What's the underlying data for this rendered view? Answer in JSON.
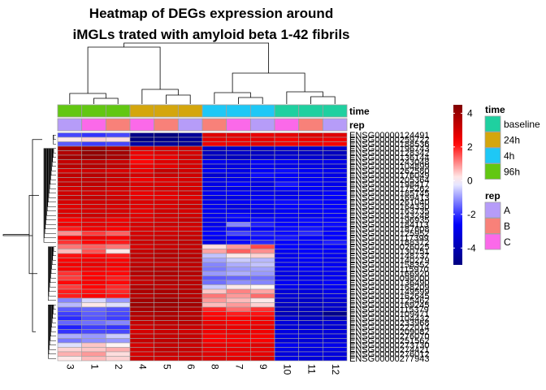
{
  "chart_data": {
    "type": "heatmap",
    "title_lines": [
      "Heatmap of DEGs expression around",
      "iMGLs trated with amyloid beta 1-42 fibrils"
    ],
    "columns": [
      "3",
      "1",
      "2",
      "4",
      "5",
      "6",
      "8",
      "7",
      "9",
      "10",
      "11",
      "12"
    ],
    "column_annotations": {
      "time": [
        "96h",
        "96h",
        "96h",
        "24h",
        "24h",
        "24h",
        "4h",
        "4h",
        "4h",
        "baseline",
        "baseline",
        "baseline"
      ],
      "rep": [
        "A",
        "C",
        "B",
        "C",
        "B",
        "A",
        "B",
        "C",
        "A",
        "C",
        "B",
        "A"
      ]
    },
    "annotation_labels": [
      "time",
      "rep"
    ],
    "row_labels": [
      "ENSG00000124491",
      "ENSG00000259722",
      "ENSG00000188536",
      "ENSG00000196743",
      "ENSG00000128342",
      "ENSG00000136144",
      "ENSG00000243048",
      "ENSG00000104899",
      "ENSG00000262580",
      "ENSG00000176049",
      "ENSG00000205364",
      "ENSG00000198417",
      "ENSG00000175262",
      "ENSG00000185745",
      "ENSG00000169413",
      "ENSG00000261040",
      "ENSG00000164330",
      "ENSG00000163735",
      "ENSG00000143248",
      "ENSG00000196935",
      "ENSG00000184113",
      "ENSG00000187608",
      "ENSG00000125952",
      "ENSG00000117399",
      "ENSG00000188372",
      "ENSG00000026025",
      "ENSG00000130751",
      "ENSG00000148737",
      "ENSG00000140279",
      "ENSG00000158352",
      "ENSG00000115970",
      "ENSG00000166920",
      "ENSG00000098000",
      "ENSG00000136490",
      "ENSG00000168209",
      "ENSG00000149599",
      "ENSG00000162645",
      "ENSG00000125462",
      "ENSG00000169245",
      "ENSG00000115379",
      "ENSG00000109471",
      "ENSG00000104432",
      "ENSG00000233968",
      "ENSG00000222014",
      "ENSG00000209082",
      "ENSG00000276070",
      "ENSG00000251562",
      "ENSG00000273730",
      "ENSG00000274421",
      "ENSG00000276012",
      "ENSG00000277943"
    ],
    "values": [
      [
        -1.8,
        -2.0,
        -1.8,
        -4.8,
        -5.0,
        -4.5,
        2.8,
        2.8,
        2.6,
        2.7,
        2.9,
        2.8
      ],
      [
        0.2,
        0.4,
        0.3,
        -5.0,
        -4.9,
        -4.6,
        2.7,
        2.6,
        2.7,
        2.4,
        2.6,
        2.5
      ],
      [
        -1.6,
        -1.9,
        -1.8,
        -4.3,
        -4.5,
        -4.6,
        2.5,
        2.6,
        2.7,
        2.5,
        2.5,
        2.4
      ],
      [
        3.8,
        4.0,
        3.7,
        2.9,
        3.0,
        3.1,
        -3.6,
        -3.6,
        -3.5,
        -3.4,
        -3.5,
        -3.5
      ],
      [
        3.6,
        4.2,
        3.9,
        2.6,
        2.9,
        3.0,
        -3.8,
        -3.6,
        -3.7,
        -3.6,
        -3.7,
        -3.8
      ],
      [
        3.9,
        4.1,
        3.8,
        2.5,
        2.6,
        3.1,
        -3.7,
        -3.8,
        -3.5,
        -3.3,
        -3.4,
        -3.6
      ],
      [
        3.3,
        3.4,
        3.2,
        2.2,
        2.8,
        3.0,
        -2.8,
        -3.0,
        -2.6,
        -2.7,
        -3.0,
        -2.9
      ],
      [
        3.5,
        3.6,
        3.4,
        2.6,
        2.7,
        3.0,
        -3.2,
        -3.1,
        -2.8,
        -3.0,
        -3.0,
        -3.2
      ],
      [
        3.0,
        3.1,
        2.9,
        2.6,
        3.3,
        3.1,
        -2.7,
        -3.0,
        -2.6,
        -2.4,
        -2.7,
        -2.8
      ],
      [
        3.4,
        3.5,
        3.3,
        3.0,
        3.2,
        3.1,
        -3.4,
        -3.0,
        -2.4,
        -2.6,
        -2.8,
        -3.0
      ],
      [
        3.2,
        3.3,
        3.1,
        2.5,
        2.8,
        3.0,
        -2.9,
        -3.0,
        -2.8,
        -2.6,
        -2.7,
        -2.8
      ],
      [
        3.3,
        3.4,
        3.2,
        2.9,
        2.9,
        3.0,
        -3.0,
        -2.5,
        -3.0,
        -2.3,
        -2.7,
        -2.9
      ],
      [
        3.0,
        3.2,
        3.0,
        2.8,
        3.0,
        3.0,
        -3.0,
        -3.0,
        -2.9,
        -2.5,
        -2.6,
        -2.8
      ],
      [
        3.1,
        3.1,
        3.0,
        2.6,
        2.8,
        3.1,
        -2.8,
        -2.7,
        -2.9,
        -3.0,
        -2.9,
        -2.6
      ],
      [
        3.2,
        3.3,
        3.1,
        2.7,
        2.7,
        2.8,
        -3.1,
        -3.0,
        -2.7,
        -2.8,
        -2.7,
        -2.6
      ],
      [
        3.0,
        3.1,
        3.1,
        2.9,
        3.0,
        3.1,
        -2.9,
        -2.7,
        -2.6,
        -2.4,
        -2.4,
        -2.6
      ],
      [
        2.8,
        3.0,
        2.9,
        2.8,
        2.9,
        3.2,
        -2.8,
        -3.1,
        -2.7,
        -2.5,
        -2.6,
        -2.5
      ],
      [
        2.9,
        3.0,
        3.0,
        2.7,
        3.1,
        3.0,
        -2.8,
        -2.9,
        -3.0,
        -2.7,
        -2.6,
        -2.6
      ],
      [
        2.9,
        3.2,
        3.0,
        2.8,
        3.1,
        3.1,
        -2.8,
        -2.4,
        -2.8,
        -2.7,
        -2.9,
        -2.6
      ],
      [
        2.3,
        2.7,
        2.5,
        2.8,
        3.0,
        3.3,
        -2.8,
        -2.6,
        -2.4,
        -2.6,
        -2.4,
        -2.5
      ],
      [
        2.6,
        2.8,
        2.7,
        3.0,
        3.2,
        3.1,
        -2.9,
        -1.2,
        -2.2,
        -2.5,
        -2.5,
        -2.4
      ],
      [
        2.0,
        2.5,
        2.3,
        2.9,
        2.9,
        3.0,
        -2.7,
        -2.3,
        -2.5,
        -2.4,
        -2.3,
        -2.6
      ],
      [
        1.0,
        1.7,
        1.4,
        3.0,
        3.1,
        3.2,
        -2.5,
        -1.8,
        -2.2,
        -2.4,
        -2.1,
        -2.5
      ],
      [
        2.3,
        2.6,
        2.4,
        3.1,
        3.2,
        3.3,
        -2.8,
        -2.5,
        -2.4,
        -2.3,
        -2.6,
        -2.5
      ],
      [
        1.8,
        2.2,
        2.0,
        3.2,
        3.3,
        3.4,
        -3.0,
        -2.4,
        -2.1,
        -2.5,
        -2.4,
        -2.2
      ],
      [
        1.2,
        1.4,
        1.2,
        3.0,
        3.2,
        3.3,
        0.3,
        0.9,
        1.6,
        -2.5,
        -2.7,
        -2.6
      ],
      [
        0.6,
        1.5,
        0.2,
        3.3,
        3.5,
        3.4,
        0.8,
        1.4,
        1.0,
        -2.8,
        -2.6,
        -2.7
      ],
      [
        2.1,
        2.2,
        2.0,
        3.4,
        3.6,
        3.5,
        -0.6,
        0.2,
        0.4,
        -2.9,
        -2.6,
        -2.8
      ],
      [
        2.3,
        2.5,
        2.3,
        3.3,
        3.5,
        3.5,
        -0.9,
        -0.5,
        -0.7,
        -2.8,
        -2.7,
        -2.9
      ],
      [
        2.5,
        2.7,
        2.5,
        3.4,
        3.3,
        3.4,
        -1.2,
        -0.8,
        -0.6,
        -2.9,
        -2.9,
        -2.8
      ],
      [
        2.4,
        2.5,
        2.3,
        3.5,
        3.6,
        3.4,
        -1.3,
        -1.0,
        -0.9,
        -2.8,
        -2.6,
        -2.7
      ],
      [
        1.8,
        2.3,
        2.2,
        3.6,
        3.7,
        3.6,
        -1.0,
        -0.8,
        -1.0,
        -3.1,
        -3.0,
        -2.9
      ],
      [
        1.7,
        2.3,
        2.0,
        3.3,
        3.5,
        3.4,
        -1.6,
        -1.5,
        -1.4,
        -3.0,
        -2.9,
        -2.8
      ],
      [
        2.2,
        2.4,
        2.2,
        3.3,
        3.6,
        3.5,
        -1.4,
        -1.1,
        -1.2,
        -2.7,
        -2.8,
        -2.6
      ],
      [
        1.7,
        2.2,
        1.9,
        3.6,
        3.4,
        3.5,
        -0.5,
        0.2,
        0.1,
        -2.9,
        -3.0,
        -2.8
      ],
      [
        2.0,
        2.1,
        1.9,
        3.7,
        3.8,
        3.6,
        0.5,
        1.1,
        0.8,
        -3.3,
        -3.2,
        -3.0
      ],
      [
        2.0,
        2.3,
        2.1,
        3.5,
        3.7,
        3.5,
        1.2,
        0.9,
        1.3,
        -3.3,
        -3.4,
        -3.1
      ],
      [
        -1.2,
        -0.4,
        -1.0,
        3.9,
        4.1,
        3.8,
        0.9,
        0.6,
        0.2,
        -3.5,
        -3.6,
        -3.4
      ],
      [
        -0.7,
        0.2,
        -0.3,
        4.0,
        4.0,
        3.9,
        0.6,
        0.9,
        0.4,
        -3.7,
        -3.6,
        -3.5
      ],
      [
        -1.6,
        -1.5,
        -1.7,
        3.8,
        3.9,
        3.6,
        1.9,
        1.3,
        1.8,
        -3.8,
        -3.7,
        -3.6
      ],
      [
        -1.9,
        -1.6,
        -1.8,
        3.6,
        3.7,
        3.5,
        2.2,
        2.0,
        2.1,
        -3.9,
        -4.0,
        -4.8
      ],
      [
        -2.1,
        -1.7,
        -1.9,
        3.5,
        3.7,
        3.6,
        2.4,
        2.3,
        2.5,
        -3.4,
        -3.7,
        -3.9
      ],
      [
        -1.5,
        -1.4,
        -1.2,
        3.3,
        3.4,
        3.5,
        2.6,
        2.4,
        2.5,
        -3.2,
        -3.5,
        -3.3
      ],
      [
        -2.2,
        -1.9,
        -2.0,
        3.1,
        3.3,
        3.2,
        2.8,
        2.6,
        2.7,
        -3.3,
        -3.2,
        -3.4
      ],
      [
        -2.0,
        -1.8,
        -1.8,
        3.0,
        3.2,
        3.1,
        2.5,
        2.7,
        2.5,
        -3.1,
        -3.3,
        -3.2
      ],
      [
        -0.8,
        -1.0,
        -0.5,
        3.2,
        3.3,
        3.3,
        2.4,
        2.5,
        2.4,
        -3.1,
        -3.1,
        -3.2
      ],
      [
        -1.3,
        -1.1,
        -1.0,
        3.3,
        3.4,
        3.4,
        2.3,
        2.4,
        2.3,
        -3.3,
        -3.3,
        -3.2
      ],
      [
        -0.3,
        0.5,
        0.1,
        3.0,
        3.3,
        3.2,
        2.7,
        2.6,
        2.8,
        -2.8,
        -3.0,
        -2.9
      ],
      [
        0.4,
        0.5,
        0.7,
        3.1,
        3.4,
        3.3,
        2.6,
        2.7,
        2.6,
        -3.0,
        -3.2,
        -3.0
      ],
      [
        0.7,
        0.9,
        0.3,
        3.0,
        3.2,
        3.1,
        2.8,
        2.6,
        2.7,
        -3.2,
        -3.1,
        -3.2
      ],
      [
        0.2,
        0.6,
        0.4,
        3.2,
        3.1,
        3.2,
        2.9,
        2.8,
        3.0,
        -3.1,
        -3.3,
        -3.2
      ]
    ],
    "color_scale": {
      "min": -5,
      "max": 4.5,
      "low_color": "#000080",
      "mid_color": "#ffffff",
      "high_color": "#800000",
      "ticks": [
        4,
        2,
        0,
        -2,
        -4
      ]
    },
    "legend": {
      "time": {
        "title": "time",
        "items": [
          {
            "label": "baseline",
            "color": "#1fd0a0"
          },
          {
            "label": "24h",
            "color": "#d4a60d"
          },
          {
            "label": "4h",
            "color": "#1ec8f6"
          },
          {
            "label": "96h",
            "color": "#62c712"
          }
        ]
      },
      "rep": {
        "title": "rep",
        "items": [
          {
            "label": "A",
            "color": "#b69cf8"
          },
          {
            "label": "B",
            "color": "#f88179"
          },
          {
            "label": "C",
            "color": "#fb69e9"
          }
        ]
      }
    },
    "legend_placement": "right"
  }
}
